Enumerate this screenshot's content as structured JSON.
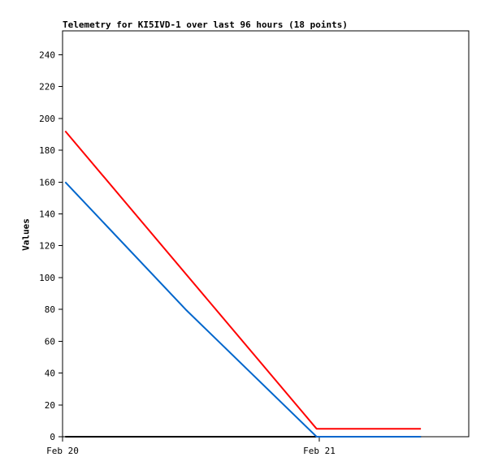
{
  "chart_data": {
    "type": "line",
    "title": "Telemetry for KI5IVD-1 over last 96 hours (18 points)",
    "xlabel": "",
    "ylabel": "Values",
    "x_ticks": [
      "Feb 20",
      "Feb 21"
    ],
    "ylim": [
      0,
      255
    ],
    "y_ticks": [
      0,
      20,
      40,
      60,
      80,
      100,
      120,
      140,
      160,
      180,
      200,
      220,
      240
    ],
    "grid": false,
    "legend": "none",
    "series": [
      {
        "color": "#0066cc",
        "points": [
          {
            "x": "Feb 20 00:15",
            "y": 160
          },
          {
            "x": "Feb 20 11:30",
            "y": 80
          },
          {
            "x": "Feb 20 23:45",
            "y": 0
          },
          {
            "x": "Feb 21 09:30",
            "y": 0
          }
        ]
      },
      {
        "color": "#ff0000",
        "points": [
          {
            "x": "Feb 20 00:15",
            "y": 192
          },
          {
            "x": "Feb 20 23:45",
            "y": 5
          },
          {
            "x": "Feb 21 09:30",
            "y": 5
          }
        ]
      },
      {
        "color": "#000000",
        "points": [
          {
            "x": "Feb 20 00:15",
            "y": 0
          },
          {
            "x": "Feb 21 09:30",
            "y": 0
          }
        ]
      }
    ]
  }
}
